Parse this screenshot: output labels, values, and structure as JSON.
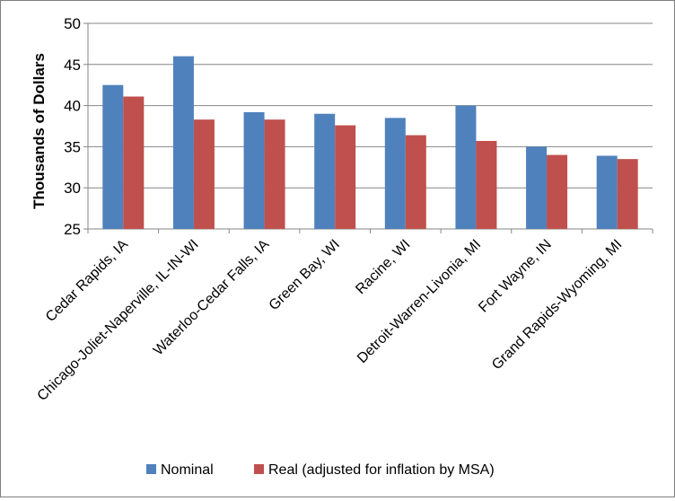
{
  "chart_data": {
    "type": "bar",
    "title": "",
    "xlabel": "",
    "ylabel": "Thousands of Dollars",
    "ylim": [
      25,
      50
    ],
    "yticks": [
      25,
      30,
      35,
      40,
      45,
      50
    ],
    "grid": true,
    "legend_position": "bottom",
    "categories": [
      "Cedar Rapids, IA",
      "Chicago-Joliet-Naperville, IL-IN-WI",
      "Waterloo-Cedar Falls, IA",
      "Green Bay, WI",
      "Racine, WI",
      "Detroit-Warren-Livonia, MI",
      "Fort Wayne, IN",
      "Grand Rapids-Wyoming, MI"
    ],
    "series": [
      {
        "name": "Nominal",
        "color": "#4f81bd",
        "values": [
          42.5,
          46.0,
          39.2,
          39.0,
          38.5,
          40.0,
          35.0,
          33.9
        ]
      },
      {
        "name": "Real (adjusted for inflation by MSA)",
        "color": "#c0504d",
        "values": [
          41.1,
          38.3,
          38.3,
          37.6,
          36.4,
          35.7,
          34.0,
          33.5
        ]
      }
    ]
  }
}
